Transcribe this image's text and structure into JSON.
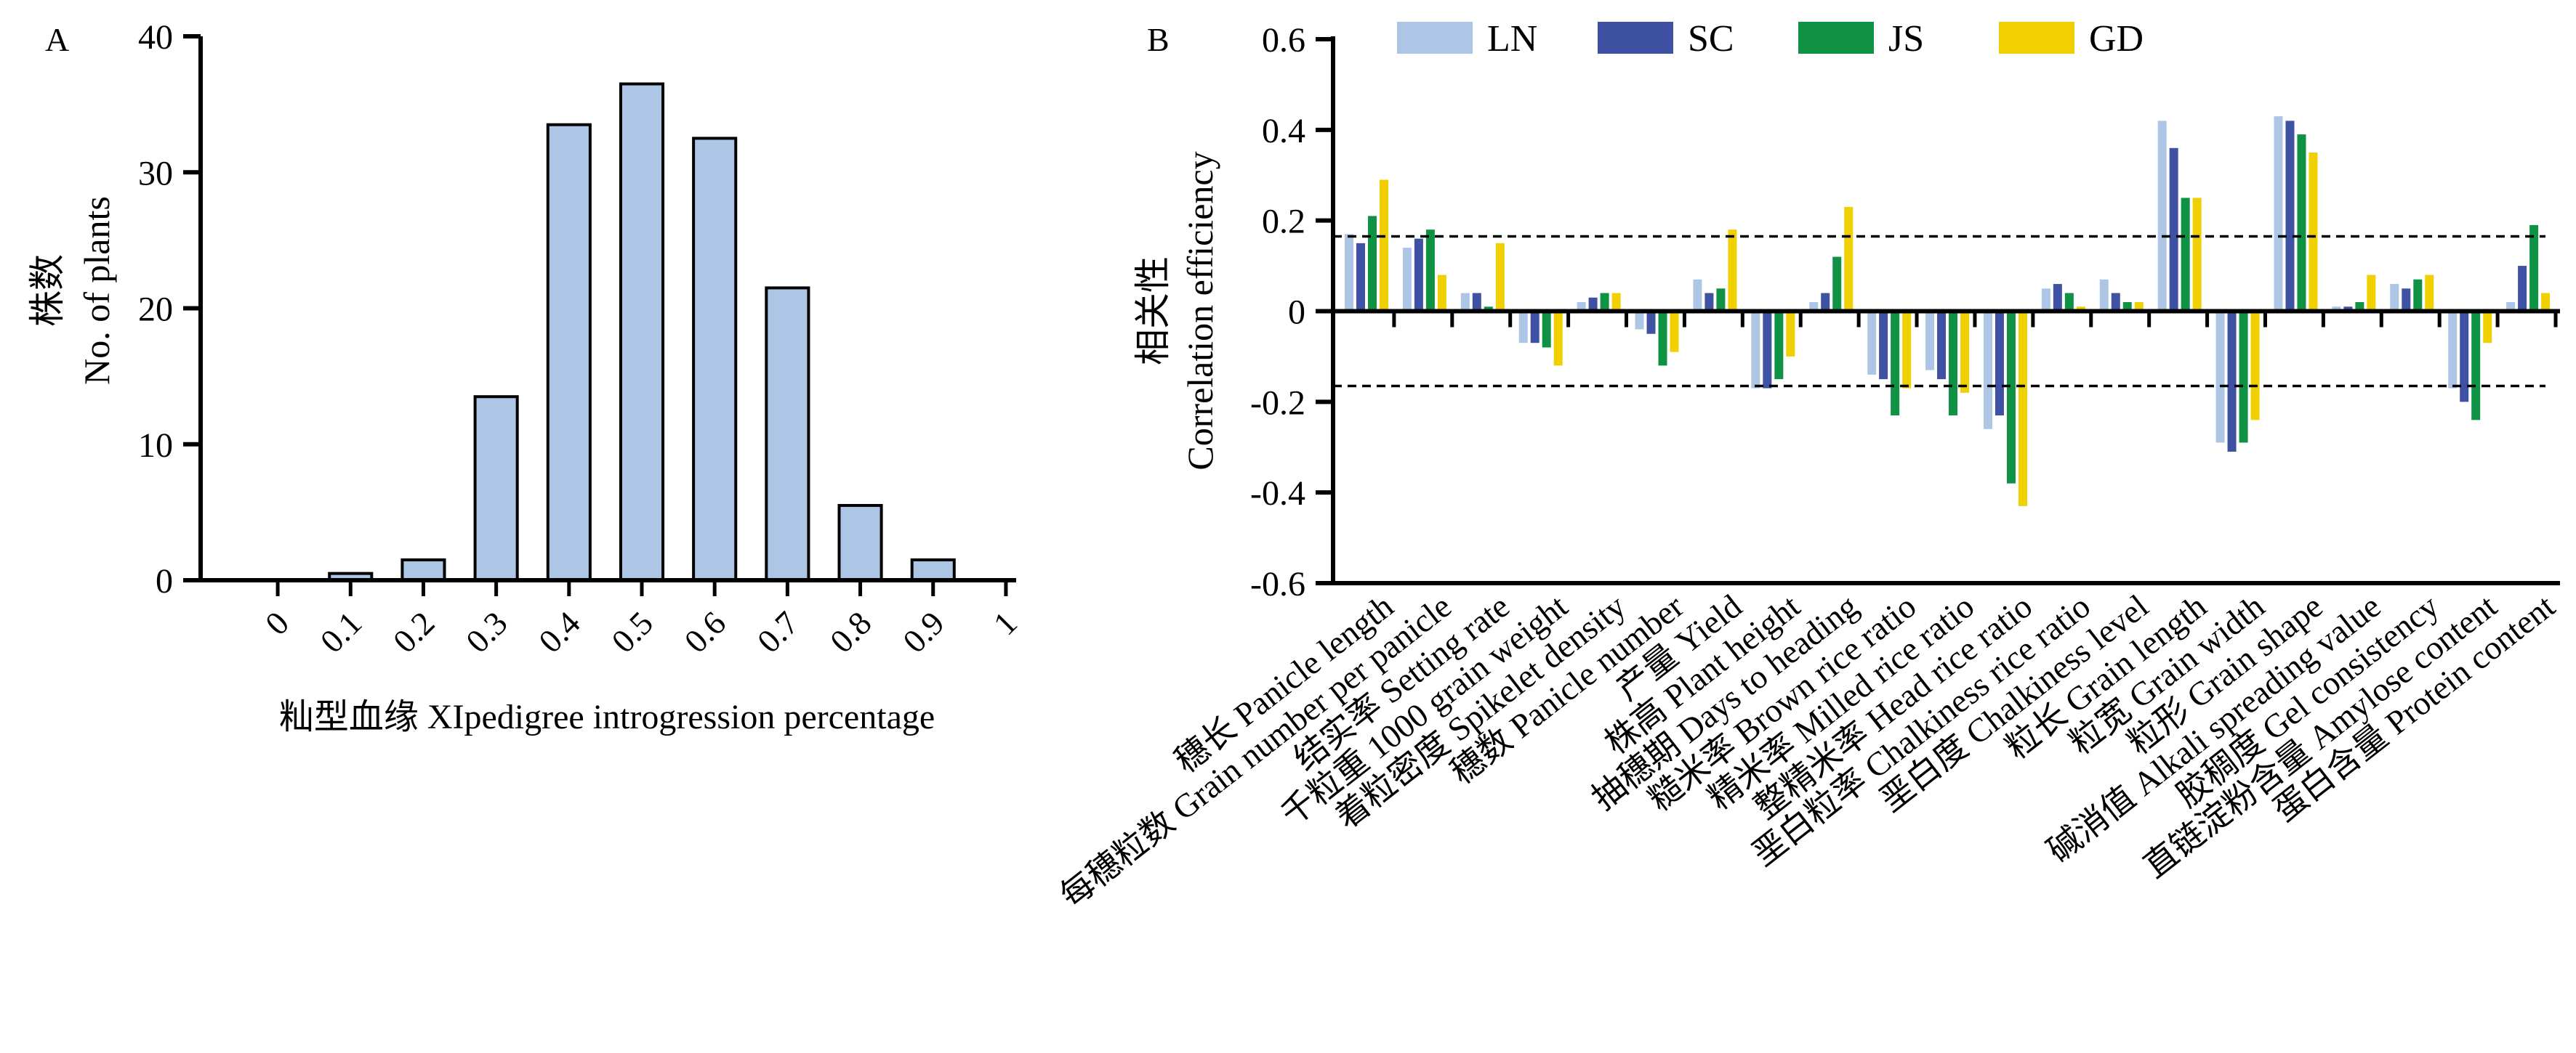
{
  "chart_data": [
    {
      "panel_label": "A",
      "type": "bar",
      "categories": [
        "0",
        "0.1",
        "0.2",
        "0.3",
        "0.4",
        "0.5",
        "0.6",
        "0.7",
        "0.8",
        "0.9",
        "1"
      ],
      "values": [
        0,
        0.5,
        1.5,
        13.5,
        33.5,
        36.5,
        32.5,
        21.5,
        5.5,
        1.5,
        0
      ],
      "xlabel": "籼型血缘 XIpedigree introgression percentage",
      "ylabel_lines": [
        "株数",
        "No. of plants"
      ],
      "ylim": [
        0,
        40
      ],
      "yticks": [
        0,
        10,
        20,
        30,
        40
      ],
      "bar_color": "#adc6e6",
      "grid": false
    },
    {
      "panel_label": "B",
      "type": "bar",
      "categories": [
        "穗长 Panicle length",
        "每穗粒数 Grain number per panicle",
        "结实率 Setting rate",
        "千粒重 1000 grain weight",
        "着粒密度 Spikelet density",
        "穗数 Panicle number",
        "产量 Yield",
        "株高 Plant height",
        "抽穗期 Days to heading",
        "糙米率 Brown rice ratio",
        "精米率 Milled rice ratio",
        "整精米率 Head rice ratio",
        "垩白粒率 Chalkiness rice ratio",
        "垩白度 Chalkiness level",
        "粒长 Grain length",
        "粒宽 Grain width",
        "粒形 Grain shape",
        "碱消值 Alkali spreading value",
        "胶稠度 Gel consistency",
        "直链淀粉含量 Amylose content",
        "蛋白含量 Protein content"
      ],
      "series": [
        {
          "name": "LN",
          "color": "#adc6e6",
          "values": [
            0.17,
            0.14,
            0.04,
            -0.07,
            0.02,
            -0.04,
            0.07,
            -0.17,
            0.02,
            -0.14,
            -0.13,
            -0.26,
            0.05,
            0.07,
            0.42,
            -0.29,
            0.43,
            0.01,
            0.06,
            -0.17,
            0.02
          ]
        },
        {
          "name": "SC",
          "color": "#3f51a3",
          "values": [
            0.15,
            0.16,
            0.04,
            -0.07,
            0.03,
            -0.05,
            0.04,
            -0.17,
            0.04,
            -0.15,
            -0.15,
            -0.23,
            0.06,
            0.04,
            0.36,
            -0.31,
            0.42,
            0.01,
            0.05,
            -0.2,
            0.1
          ]
        },
        {
          "name": "JS",
          "color": "#0f9244",
          "values": [
            0.21,
            0.18,
            0.01,
            -0.08,
            0.04,
            -0.12,
            0.05,
            -0.15,
            0.12,
            -0.23,
            -0.23,
            -0.38,
            0.04,
            0.02,
            0.25,
            -0.29,
            0.39,
            0.02,
            0.07,
            -0.24,
            0.19
          ]
        },
        {
          "name": "GD",
          "color": "#f0d000",
          "values": [
            0.29,
            0.08,
            0.15,
            -0.12,
            0.04,
            -0.09,
            0.18,
            -0.1,
            0.23,
            -0.17,
            -0.18,
            -0.43,
            0.01,
            0.02,
            0.25,
            -0.24,
            0.35,
            0.08,
            0.08,
            -0.07,
            0.04
          ]
        }
      ],
      "ylabel_lines": [
        "相关性",
        "Correlation efficiency"
      ],
      "ylim": [
        -0.6,
        0.6
      ],
      "yticks": [
        "-0.6",
        "-0.4",
        "-0.2",
        "0",
        "0.2",
        "0.4",
        "0.6"
      ],
      "reference_lines": [
        0.165,
        -0.165
      ],
      "legend_placement": "top",
      "grid": false
    }
  ]
}
